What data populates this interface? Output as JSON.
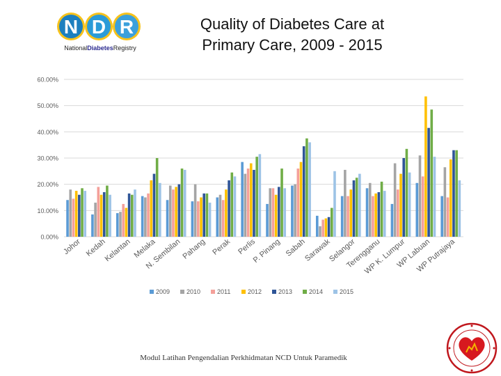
{
  "logo": {
    "letters": [
      "N",
      "D",
      "R"
    ],
    "subtitle_a": "National",
    "subtitle_b": "Diabetes",
    "subtitle_c": "Registry"
  },
  "title_lines": [
    "Quality of Diabetes Care at",
    "Primary Care, 2009 - 2015"
  ],
  "footer": "Modul Latihan Pengendalian Perkhidmatan NCD Untuk Paramedik",
  "seal": {
    "name": "kementerian-kesihatan-malaysia-seal"
  },
  "chart_data": {
    "type": "bar",
    "title": "Quality of Diabetes Care at Primary Care, 2009 - 2015",
    "xlabel": "",
    "ylabel": "",
    "ylim": [
      0,
      60
    ],
    "yticks": [
      "0.00%",
      "10.00%",
      "20.00%",
      "30.00%",
      "40.00%",
      "50.00%",
      "60.00%"
    ],
    "grid": true,
    "legend_position": "bottom",
    "categories": [
      "Johor",
      "Kedah",
      "Kelantan",
      "Melaka",
      "N. Sembilan",
      "Pahang",
      "Perak",
      "Perlis",
      "P. Pinang",
      "Sabah",
      "Sarawak",
      "Selangor",
      "Terengganu",
      "WP K. Lumpur",
      "WP Labuan",
      "WP Putrajaya"
    ],
    "series": [
      {
        "name": "2009",
        "color": "#5b9bd5",
        "values": [
          14.0,
          8.5,
          9.0,
          15.5,
          14.0,
          13.5,
          15.0,
          28.5,
          12.5,
          19.5,
          8.0,
          15.5,
          18.5,
          12.5,
          20.5,
          15.5
        ]
      },
      {
        "name": "2010",
        "color": "#a5a5a5",
        "values": [
          18.0,
          13.0,
          9.5,
          15.0,
          19.5,
          20.0,
          16.0,
          24.0,
          18.5,
          20.0,
          4.0,
          25.5,
          20.5,
          28.0,
          31.0,
          26.5
        ]
      },
      {
        "name": "2011",
        "color": "#f4a09a",
        "values": [
          14.5,
          19.0,
          12.5,
          16.5,
          18.0,
          13.5,
          14.0,
          26.0,
          18.5,
          26.0,
          6.5,
          15.5,
          15.5,
          18.0,
          23.0,
          15.0
        ]
      },
      {
        "name": "2012",
        "color": "#ffc000",
        "values": [
          17.5,
          16.0,
          11.0,
          21.5,
          19.0,
          15.0,
          18.0,
          28.0,
          16.0,
          28.5,
          7.0,
          18.0,
          16.5,
          24.0,
          53.5,
          29.5
        ]
      },
      {
        "name": "2013",
        "color": "#2f5597",
        "values": [
          16.0,
          17.0,
          16.5,
          24.0,
          20.0,
          16.5,
          21.5,
          25.5,
          19.0,
          34.5,
          7.5,
          21.5,
          17.0,
          30.0,
          41.5,
          33.0
        ]
      },
      {
        "name": "2014",
        "color": "#70ad47",
        "values": [
          18.5,
          19.5,
          16.0,
          30.0,
          26.0,
          16.5,
          24.5,
          30.5,
          26.0,
          37.5,
          11.0,
          22.5,
          21.0,
          33.5,
          48.5,
          33.0
        ]
      },
      {
        "name": "2015",
        "color": "#9dc3e6",
        "values": [
          17.5,
          16.0,
          18.0,
          20.5,
          25.5,
          13.0,
          23.0,
          31.5,
          18.5,
          36.0,
          25.0,
          24.0,
          17.5,
          24.5,
          30.5,
          21.5
        ]
      }
    ]
  }
}
